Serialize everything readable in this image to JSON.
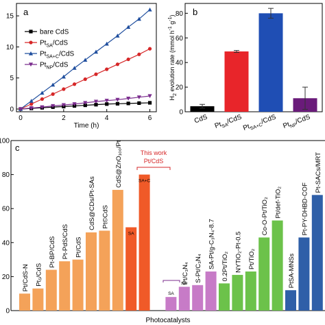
{
  "chart_data": [
    {
      "panel": "a",
      "type": "line",
      "xlabel": "Time (h)",
      "ylabel": "",
      "xlim": [
        0,
        6.3
      ],
      "ylim": [
        0,
        17
      ],
      "x_ticks": [
        "0",
        "2",
        "4",
        "6"
      ],
      "y_ticks": [
        "0",
        "5",
        "10",
        "15"
      ],
      "legend_placement": "top-left",
      "series": [
        {
          "name": "bare CdS",
          "label_main": "bare CdS",
          "label_sub": "",
          "label_suffix": "",
          "color": "#000000",
          "marker": "square",
          "x": [
            0,
            0.5,
            1,
            1.5,
            2,
            2.5,
            3,
            3.5,
            4,
            4.5,
            5,
            5.5,
            6
          ],
          "y": [
            0,
            0.1,
            0.2,
            0.3,
            0.4,
            0.5,
            0.6,
            0.7,
            0.8,
            0.85,
            0.9,
            0.95,
            1.0
          ]
        },
        {
          "name": "PtSA/CdS",
          "label_main": "Pt",
          "label_sub": "SA",
          "label_suffix": "/CdS",
          "color": "#d62728",
          "marker": "circle",
          "x": [
            0,
            0.5,
            1,
            1.5,
            2,
            2.5,
            3,
            3.5,
            4,
            4.5,
            5,
            5.5,
            6
          ],
          "y": [
            0,
            0.8,
            1.6,
            2.4,
            3.2,
            4.0,
            4.8,
            5.6,
            6.4,
            7.2,
            8.0,
            8.8,
            9.7
          ]
        },
        {
          "name": "PtSA+C/CdS",
          "label_main": "Pt",
          "label_sub": "SA+C",
          "label_suffix": "/CdS",
          "color": "#1f4e9e",
          "marker": "triangle",
          "x": [
            0,
            0.5,
            1,
            1.5,
            2,
            2.5,
            3,
            3.5,
            4,
            4.5,
            5,
            5.5,
            6
          ],
          "y": [
            0,
            1.3,
            2.6,
            3.9,
            5.2,
            6.6,
            7.9,
            9.2,
            10.5,
            11.8,
            13.2,
            14.5,
            16.0
          ]
        },
        {
          "name": "PtNP/CdS",
          "label_main": "Pt",
          "label_sub": "NP",
          "label_suffix": "/CdS",
          "color": "#7b2d8e",
          "marker": "triangle-down",
          "x": [
            0,
            0.5,
            1,
            1.5,
            2,
            2.5,
            3,
            3.5,
            4,
            4.5,
            5,
            5.5,
            6
          ],
          "y": [
            0,
            0.15,
            0.3,
            0.5,
            0.65,
            0.8,
            1.0,
            1.2,
            1.35,
            1.5,
            1.7,
            1.9,
            2.1
          ]
        }
      ]
    },
    {
      "panel": "b",
      "type": "bar",
      "ylabel_main": "H",
      "ylabel_sub": "2",
      "ylabel_rest": " evolution rate (mmol h",
      "ylabel_sup1": "-1",
      "ylabel_mid": " g",
      "ylabel_sup2": "-1",
      "ylabel_end": ")",
      "ylim": [
        0,
        88
      ],
      "y_ticks": [
        "0",
        "20",
        "40",
        "60",
        "80"
      ],
      "categories": [
        {
          "main": "CdS",
          "sub": "",
          "suffix": ""
        },
        {
          "main": "Pt",
          "sub": "SA",
          "suffix": "/CdS"
        },
        {
          "main": "Pt",
          "sub": "SA+C",
          "suffix": "/CdS"
        },
        {
          "main": "Pt",
          "sub": "NP",
          "suffix": "/CdS"
        }
      ],
      "values": [
        4.5,
        49,
        80,
        11
      ],
      "errors": [
        1.5,
        0.8,
        4,
        9
      ],
      "colors": [
        "#000000",
        "#e8252a",
        "#1f4eb4",
        "#6a1b7a"
      ]
    },
    {
      "panel": "c",
      "type": "bar",
      "xlabel": "Photocatalysts",
      "ylim_top": 100,
      "y_ticks": [
        "100",
        "80",
        "60",
        "40",
        "20",
        "0"
      ],
      "annotation_title": "This work",
      "annotation_sub": "Pt/CdS",
      "annotation_sa": "SA",
      "annotation_sac": "SA+C",
      "annotation_np": "NP",
      "bars": [
        {
          "label": "Pt/CdS-N",
          "value": 10,
          "color": "#f4a259"
        },
        {
          "label": "Pt₅/CdS",
          "value": 13,
          "color": "#f4a259"
        },
        {
          "label": "Pt-BP/CdS",
          "value": 24,
          "color": "#f4a259"
        },
        {
          "label": "Pt-PdS/CdS",
          "value": 29,
          "color": "#f4a259"
        },
        {
          "label": "Pt/CdS",
          "value": 30,
          "color": "#f4a259"
        },
        {
          "label": "CdS@CDs/Pt-SAs",
          "value": 46,
          "color": "#f4a259"
        },
        {
          "label": "Pt©CdS",
          "value": 47,
          "color": "#f4a259"
        },
        {
          "label": "CdS@ZnO₁₀₀/Pt",
          "value": 71,
          "color": "#f4a259"
        },
        {
          "label": "",
          "value": 49,
          "color": "#f05a28",
          "tag": "SA"
        },
        {
          "label": "",
          "value": 80,
          "color": "#f05a28",
          "tag": "SA+C"
        },
        {
          "label": "",
          "value": 0,
          "color": "#ffffff"
        },
        {
          "label": "",
          "value": 8,
          "color": "#c77bc7",
          "tag": "SA"
        },
        {
          "label": "Pt/C₃N₄",
          "value": 14,
          "color": "#c77bc7",
          "tag": "NP"
        },
        {
          "label": "S-Pt/C₃N₄",
          "value": 15,
          "color": "#c77bc7"
        },
        {
          "label": "SA-Pt/g-C₃N₄-8.7",
          "value": 23,
          "color": "#c77bc7"
        },
        {
          "label": "0.2Pt/TiO₂",
          "value": 16,
          "color": "#6cc24a"
        },
        {
          "label": "NYTiO₂-Pt-0.5",
          "value": 21,
          "color": "#6cc24a"
        },
        {
          "label": "Pt/TiO₂",
          "value": 23,
          "color": "#6cc24a"
        },
        {
          "label": "Co-O-Pt/TiO₂",
          "value": 43,
          "color": "#6cc24a"
        },
        {
          "label": "Pt/def-TiO₂",
          "value": 53,
          "color": "#6cc24a"
        },
        {
          "label": "PtSA-MNSs",
          "value": 12,
          "color": "#2f5fa8"
        },
        {
          "label": "Pt-PY-DHBD-COF",
          "value": 43,
          "color": "#2f5fa8"
        },
        {
          "label": "Pt-SACs/MRT",
          "value": 68,
          "color": "#2f5fa8"
        }
      ]
    }
  ]
}
